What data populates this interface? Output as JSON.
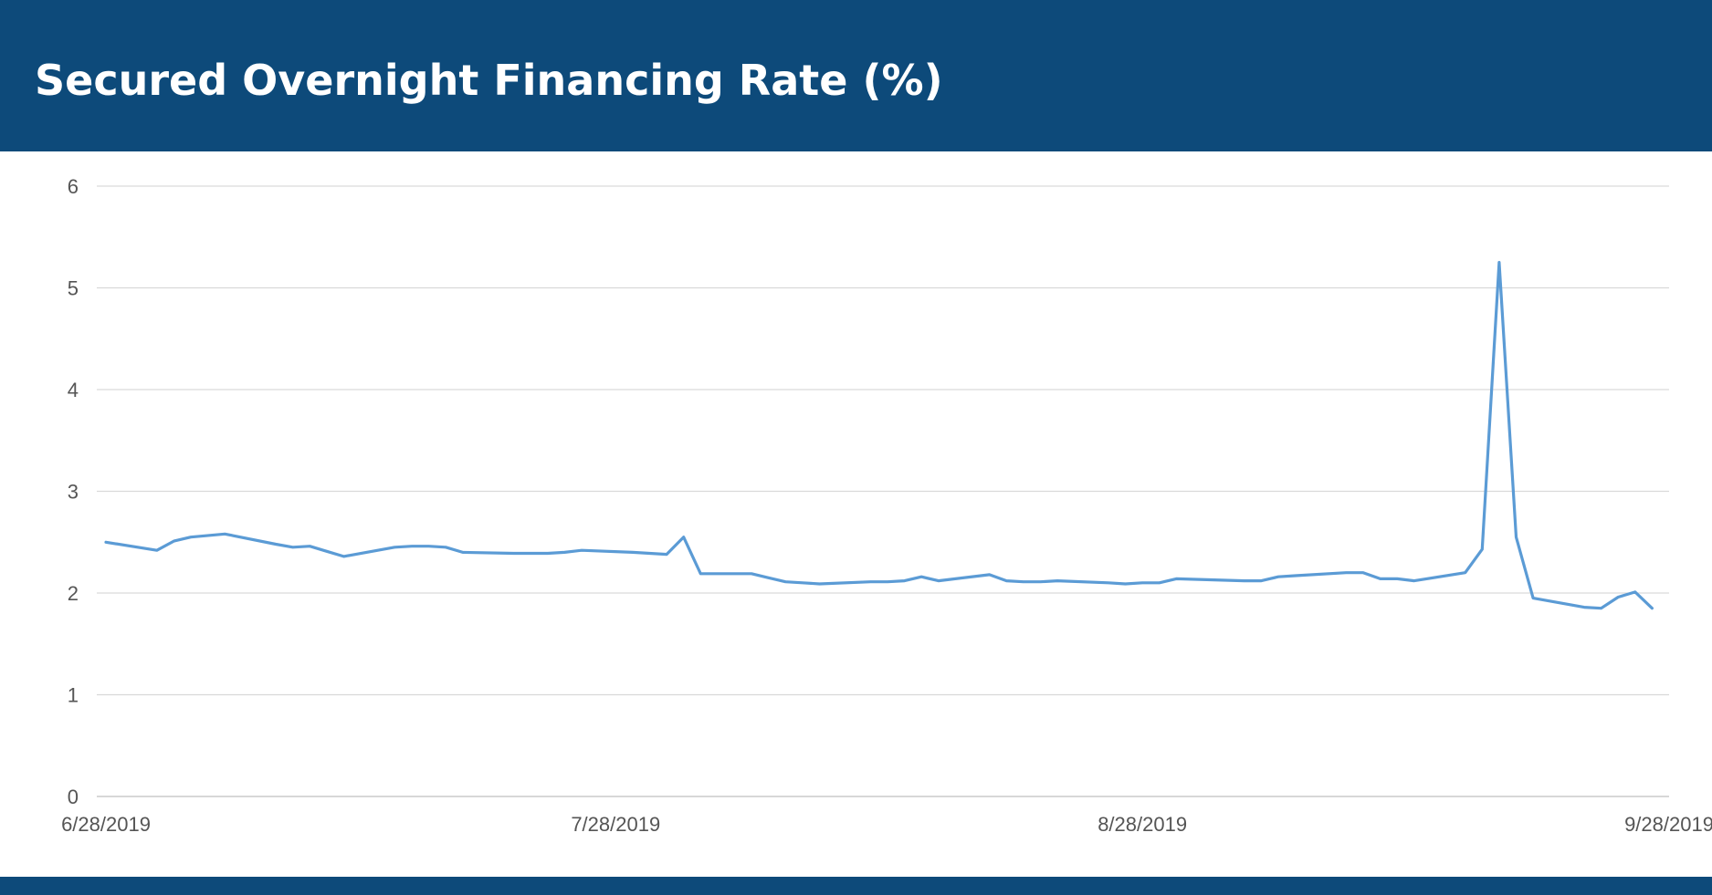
{
  "header": {
    "title": "Secured Overnight Financing Rate (%)"
  },
  "colors": {
    "header_bg": "#0d4a7a",
    "line": "#5b9bd5",
    "grid": "#d9d9d9",
    "axis_text": "#555555"
  },
  "chart_data": {
    "type": "line",
    "title": "Secured Overnight Financing Rate (%)",
    "xlabel": "",
    "ylabel": "",
    "ylim": [
      0,
      6
    ],
    "yticks": [
      "0",
      "1",
      "2",
      "3",
      "4",
      "5",
      "6"
    ],
    "xlim": [
      "2019-06-28",
      "2019-09-28"
    ],
    "xticks": [
      {
        "date": "2019-06-28",
        "label": "6/28/2019"
      },
      {
        "date": "2019-07-28",
        "label": "7/28/2019"
      },
      {
        "date": "2019-08-28",
        "label": "8/28/2019"
      },
      {
        "date": "2019-09-28",
        "label": "9/28/2019"
      }
    ],
    "grid": true,
    "legend": "none",
    "series": [
      {
        "x": [
          "2019-06-28",
          "2019-07-01",
          "2019-07-02",
          "2019-07-03",
          "2019-07-05",
          "2019-07-08",
          "2019-07-09",
          "2019-07-10",
          "2019-07-11",
          "2019-07-12",
          "2019-07-15",
          "2019-07-16",
          "2019-07-17",
          "2019-07-18",
          "2019-07-19",
          "2019-07-22",
          "2019-07-23",
          "2019-07-24",
          "2019-07-25",
          "2019-07-26",
          "2019-07-29",
          "2019-07-30",
          "2019-07-31",
          "2019-08-01",
          "2019-08-02",
          "2019-08-05",
          "2019-08-06",
          "2019-08-07",
          "2019-08-08",
          "2019-08-09",
          "2019-08-12",
          "2019-08-13",
          "2019-08-14",
          "2019-08-15",
          "2019-08-16",
          "2019-08-19",
          "2019-08-20",
          "2019-08-21",
          "2019-08-22",
          "2019-08-23",
          "2019-08-26",
          "2019-08-27",
          "2019-08-28",
          "2019-08-29",
          "2019-08-30",
          "2019-09-03",
          "2019-09-04",
          "2019-09-05",
          "2019-09-06",
          "2019-09-09",
          "2019-09-10",
          "2019-09-11",
          "2019-09-12",
          "2019-09-13",
          "2019-09-16",
          "2019-09-17",
          "2019-09-18",
          "2019-09-19",
          "2019-09-20",
          "2019-09-23",
          "2019-09-24",
          "2019-09-25",
          "2019-09-26",
          "2019-09-27"
        ],
        "y": [
          2.5,
          2.42,
          2.51,
          2.55,
          2.58,
          2.48,
          2.45,
          2.46,
          2.41,
          2.36,
          2.45,
          2.46,
          2.46,
          2.45,
          2.4,
          2.39,
          2.39,
          2.39,
          2.4,
          2.42,
          2.4,
          2.39,
          2.38,
          2.55,
          2.19,
          2.19,
          2.15,
          2.11,
          2.1,
          2.09,
          2.11,
          2.11,
          2.12,
          2.16,
          2.12,
          2.18,
          2.12,
          2.11,
          2.11,
          2.12,
          2.1,
          2.09,
          2.1,
          2.1,
          2.14,
          2.12,
          2.12,
          2.16,
          2.17,
          2.2,
          2.2,
          2.14,
          2.14,
          2.12,
          2.2,
          2.43,
          5.25,
          2.55,
          1.95,
          1.86,
          1.85,
          1.96,
          2.01,
          1.85
        ]
      }
    ]
  }
}
